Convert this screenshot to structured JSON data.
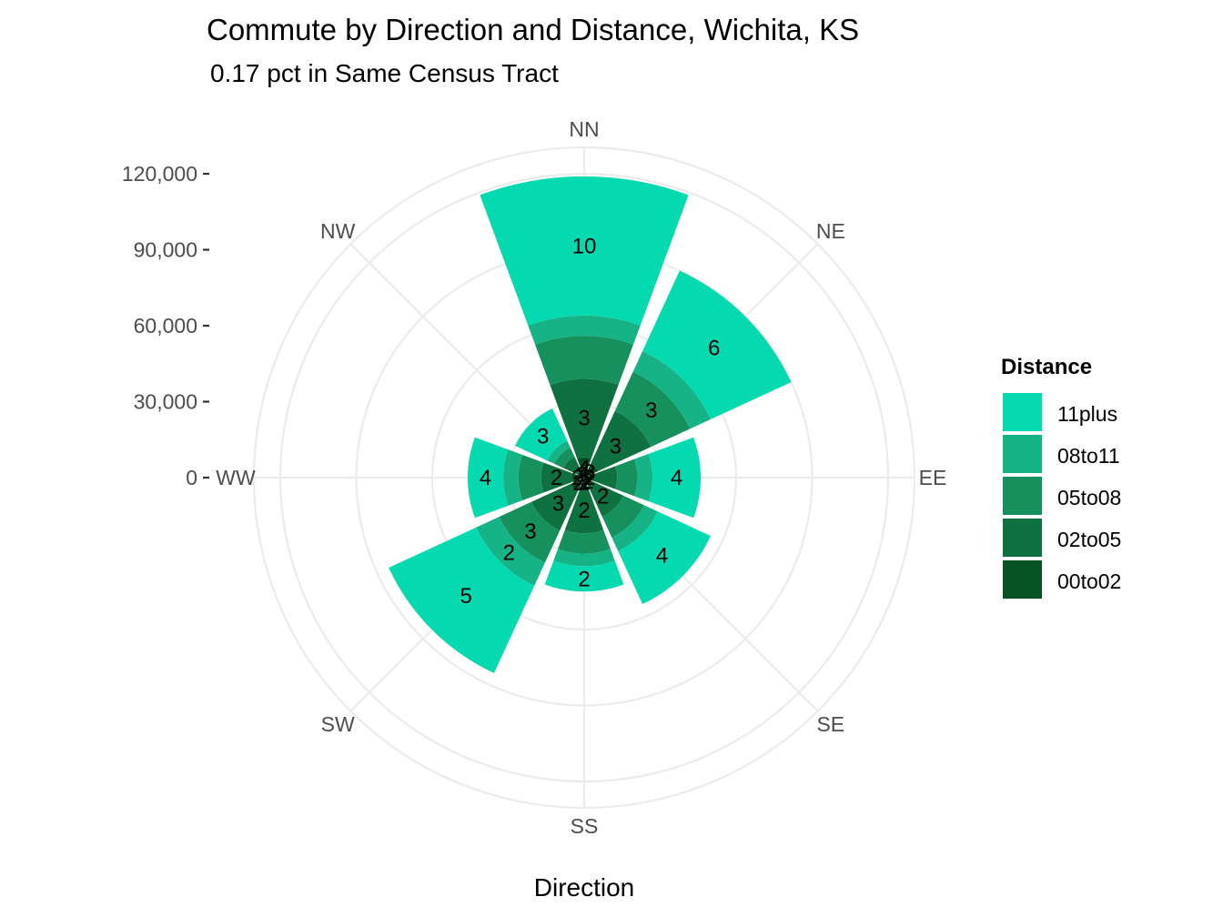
{
  "chart_data": {
    "type": "bar",
    "subtype": "polar-stacked",
    "title": "Commute by Direction and Distance, Wichita, KS",
    "subtitle": "0.17 pct in Same Census Tract",
    "xlabel": "Direction",
    "ylabel": "",
    "ylim": [
      0,
      120000
    ],
    "y_ticks": [
      0,
      30000,
      60000,
      90000,
      120000
    ],
    "y_tick_labels": [
      "0",
      "30,000",
      "60,000",
      "90,000",
      "120,000"
    ],
    "grid": true,
    "legend": {
      "title": "Distance",
      "position": "right"
    },
    "categories": [
      "NN",
      "NE",
      "EE",
      "SE",
      "SS",
      "SW",
      "WW",
      "NW"
    ],
    "series": [
      {
        "name": "00to02",
        "color": "#075123",
        "values": [
          8000,
          6000,
          4000,
          4000,
          4000,
          6000,
          5000,
          3000
        ],
        "labels": [
          "4",
          "3",
          "2",
          "2",
          "2",
          "2",
          "2",
          "3"
        ]
      },
      {
        "name": "02to05",
        "color": "#0f7140",
        "values": [
          31000,
          23000,
          9000,
          13000,
          18000,
          17000,
          12000,
          6000
        ],
        "labels": [
          "3",
          "3",
          "",
          "2",
          "2",
          "3",
          "2",
          ""
        ]
      },
      {
        "name": "05to08",
        "color": "#16905c",
        "values": [
          17000,
          17000,
          8000,
          9000,
          8000,
          14000,
          9000,
          4000
        ],
        "labels": [
          "",
          "3",
          "",
          "",
          "",
          "3",
          "",
          ""
        ]
      },
      {
        "name": "08to11",
        "color": "#16b386",
        "values": [
          8000,
          9000,
          6000,
          6000,
          5000,
          10000,
          6000,
          3000
        ],
        "labels": [
          "",
          "",
          "",
          "",
          "",
          "2",
          "",
          ""
        ]
      },
      {
        "name": "11plus",
        "color": "#04d9b0",
        "values": [
          55000,
          35000,
          19000,
          23000,
          10000,
          38000,
          14000,
          14000
        ],
        "labels": [
          "10",
          "6",
          "4",
          "4",
          "2",
          "5",
          "4",
          "3"
        ]
      }
    ]
  }
}
